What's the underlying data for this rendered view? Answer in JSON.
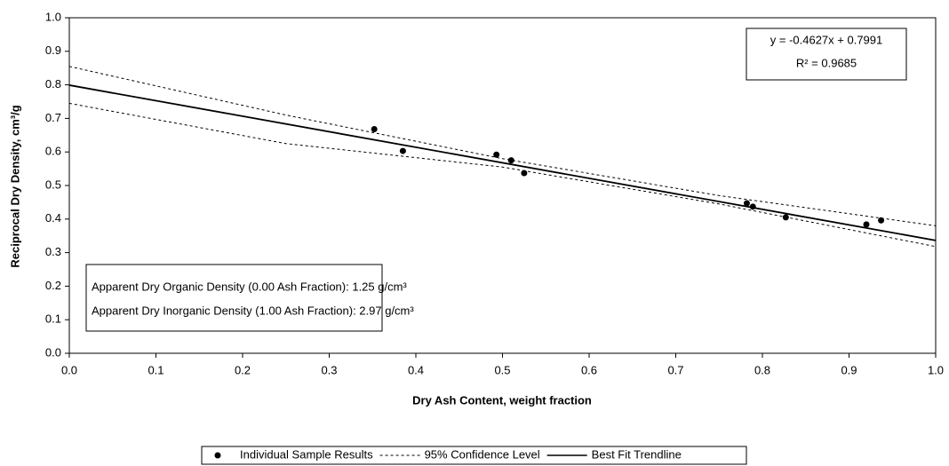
{
  "chart_data": {
    "type": "scatter",
    "xlabel": "Dry Ash Content, weight fraction",
    "ylabel": "Reciprocal Dry Density, cm³/g",
    "xlim": [
      0,
      1
    ],
    "ylim": [
      0,
      1
    ],
    "xticks": [
      {
        "value": 0,
        "label": "0.0"
      },
      0.1,
      0.2,
      0.3,
      0.4,
      0.5,
      0.6,
      0.7,
      0.8,
      0.9,
      {
        "value": 1,
        "label": "1.0"
      }
    ],
    "yticks": [
      {
        "value": 0,
        "label": "0.0"
      },
      0.1,
      0.2,
      0.3,
      0.4,
      0.5,
      0.6,
      0.7,
      0.8,
      0.9,
      {
        "value": 1,
        "label": "1.0"
      }
    ],
    "grid": false,
    "series": [
      {
        "name": "Individual Sample Results",
        "color": "#000000",
        "style": "points",
        "x": [
          0.352,
          0.385,
          0.493,
          0.51,
          0.525,
          0.782,
          0.789,
          0.827,
          0.92,
          0.937
        ],
        "values": [
          0.668,
          0.603,
          0.592,
          0.575,
          0.537,
          0.447,
          0.437,
          0.405,
          0.384,
          0.396
        ]
      },
      {
        "name": "95% Confidence Level",
        "color": "#000000",
        "style": "dashed",
        "x": [
          0,
          0.25,
          0.5,
          0.75,
          1
        ],
        "values": [
          0.855,
          0.71,
          0.58,
          0.47,
          0.38
        ]
      },
      {
        "color": "#000000",
        "style": "dashed",
        "x": [
          0,
          0.25,
          0.5,
          0.75,
          1
        ],
        "values": [
          0.745,
          0.625,
          0.555,
          0.445,
          0.318
        ]
      },
      {
        "name": "Best Fit Trendline",
        "color": "#000000",
        "style": "solid",
        "x": [
          0,
          1
        ],
        "values": [
          0.7991,
          0.3364
        ]
      }
    ],
    "equation": [
      "y = -0.4627x + 0.7991",
      "R² = 0.9685"
    ],
    "annotations": [
      "Apparent Dry Organic Density (0.00 Ash Fraction): 1.25 g/cm³",
      "Apparent Dry Inorganic Density (1.00 Ash Fraction): 2.97 g/cm³"
    ]
  }
}
